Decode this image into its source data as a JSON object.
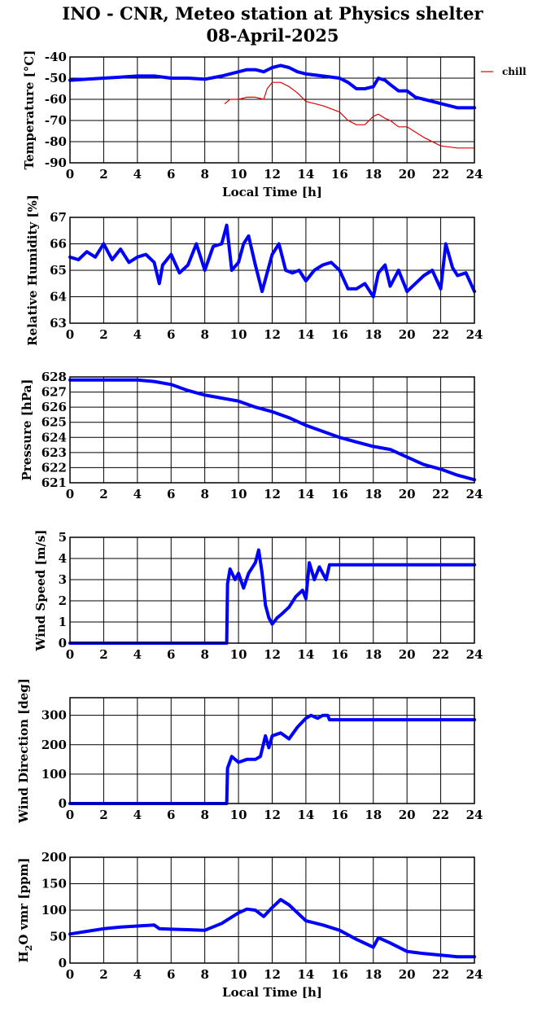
{
  "page": {
    "title_line1": "INO - CNR, Meteo station at Physics shelter",
    "title_line2": "08-April-2025"
  },
  "colors": {
    "series_blue": "#0000ff",
    "series_red": "#dd0000",
    "frame": "#000000"
  },
  "chart_data": [
    {
      "type": "line",
      "xlabel": "Local Time [h]",
      "ylabel": "Temperature [°C]",
      "xlim": [
        0,
        24
      ],
      "ylim": [
        -90,
        -40
      ],
      "xticks": [
        "0",
        "2",
        "4",
        "6",
        "8",
        "10",
        "12",
        "14",
        "16",
        "18",
        "20",
        "22",
        "24"
      ],
      "yticks": [
        "-90",
        "-80",
        "-70",
        "-60",
        "-50",
        "-40"
      ],
      "grid": true,
      "legend": "top-right, outside plot",
      "series": [
        {
          "color": "#0000ff",
          "x": [
            0,
            1,
            2,
            3,
            4,
            5,
            6,
            7,
            8,
            9,
            9.5,
            10,
            10.5,
            11,
            11.5,
            12,
            12.5,
            13,
            13.5,
            14,
            15,
            16,
            16.5,
            17,
            17.5,
            18,
            18.3,
            18.7,
            19,
            19.5,
            20,
            20.5,
            21,
            22,
            23,
            24
          ],
          "y": [
            -51,
            -50.5,
            -50,
            -49.5,
            -49,
            -49,
            -50,
            -50,
            -50.5,
            -49,
            -48,
            -47,
            -46,
            -46,
            -47,
            -45,
            -44,
            -45,
            -47,
            -48,
            -49,
            -50,
            -52,
            -55,
            -55,
            -54,
            -50,
            -51,
            -53,
            -56,
            -56,
            -59,
            -60,
            -62,
            -64,
            -64
          ]
        },
        {
          "name": "chill",
          "color": "#dd0000",
          "x": [
            9.2,
            9.5,
            10,
            10.5,
            11,
            11.5,
            11.7,
            12,
            12.5,
            13,
            13.5,
            14,
            14.5,
            15,
            16,
            16.5,
            17,
            17.5,
            18,
            18.3,
            18.7,
            19,
            19.5,
            20,
            21,
            22,
            23,
            24
          ],
          "y": [
            -62,
            -60,
            -60,
            -59,
            -59,
            -60,
            -55,
            -52,
            -52,
            -54,
            -57,
            -61,
            -62,
            -63,
            -66,
            -70,
            -72,
            -72,
            -68,
            -67,
            -69,
            -70,
            -73,
            -73,
            -78,
            -82,
            -83,
            -83
          ]
        }
      ]
    },
    {
      "type": "line",
      "xlabel": "",
      "ylabel": "Relative Humidity [%]",
      "xlim": [
        0,
        24
      ],
      "ylim": [
        63,
        67
      ],
      "xticks": [
        "0",
        "2",
        "4",
        "6",
        "8",
        "10",
        "12",
        "14",
        "16",
        "18",
        "20",
        "22",
        "24"
      ],
      "yticks": [
        "63",
        "64",
        "65",
        "66",
        "67"
      ],
      "grid": true,
      "series": [
        {
          "color": "#0000ff",
          "x": [
            0,
            0.5,
            1,
            1.5,
            2,
            2.5,
            3,
            3.5,
            4,
            4.5,
            5,
            5.3,
            5.5,
            6,
            6.5,
            7,
            7.5,
            8,
            8.5,
            9,
            9.3,
            9.6,
            10,
            10.3,
            10.6,
            11,
            11.4,
            11.7,
            12,
            12.4,
            12.8,
            13.2,
            13.6,
            14,
            14.5,
            15,
            15.5,
            16,
            16.5,
            17,
            17.5,
            18,
            18.3,
            18.7,
            19,
            19.5,
            20,
            20.5,
            21,
            21.5,
            22,
            22.3,
            22.7,
            23,
            23.5,
            24
          ],
          "y": [
            65.5,
            65.4,
            65.7,
            65.5,
            66,
            65.4,
            65.8,
            65.3,
            65.5,
            65.6,
            65.3,
            64.5,
            65.2,
            65.6,
            64.9,
            65.2,
            66,
            65,
            65.9,
            66,
            66.7,
            65,
            65.3,
            66,
            66.3,
            65.2,
            64.2,
            64.9,
            65.6,
            66,
            65,
            64.9,
            65,
            64.6,
            65,
            65.2,
            65.3,
            65,
            64.3,
            64.3,
            64.5,
            64,
            64.9,
            65.2,
            64.4,
            65,
            64.2,
            64.5,
            64.8,
            65,
            64.3,
            66,
            65.1,
            64.8,
            64.9,
            64.2
          ]
        }
      ]
    },
    {
      "type": "line",
      "xlabel": "",
      "ylabel": "Pressure [hPa]",
      "xlim": [
        0,
        24
      ],
      "ylim": [
        621,
        628
      ],
      "xticks": [
        "0",
        "2",
        "4",
        "6",
        "8",
        "10",
        "12",
        "14",
        "16",
        "18",
        "20",
        "22",
        "24"
      ],
      "yticks": [
        "621",
        "622",
        "623",
        "624",
        "625",
        "626",
        "627",
        "628"
      ],
      "grid": true,
      "series": [
        {
          "color": "#0000ff",
          "x": [
            0,
            1,
            2,
            3,
            4,
            5,
            6,
            7,
            8,
            9,
            10,
            11,
            12,
            13,
            14,
            15,
            16,
            17,
            18,
            19,
            20,
            21,
            22,
            23,
            24
          ],
          "y": [
            627.8,
            627.8,
            627.8,
            627.8,
            627.8,
            627.7,
            627.5,
            627.1,
            626.8,
            626.6,
            626.4,
            626,
            625.7,
            625.3,
            624.8,
            624.4,
            624,
            623.7,
            623.4,
            623.2,
            622.7,
            622.2,
            621.9,
            621.5,
            621.2
          ]
        }
      ]
    },
    {
      "type": "line",
      "xlabel": "",
      "ylabel": "Wind Speed [m/s]",
      "xlim": [
        0,
        24
      ],
      "ylim": [
        0,
        5
      ],
      "xticks": [
        "0",
        "2",
        "4",
        "6",
        "8",
        "10",
        "12",
        "14",
        "16",
        "18",
        "20",
        "22",
        "24"
      ],
      "yticks": [
        "0",
        "1",
        "2",
        "3",
        "4",
        "5"
      ],
      "grid": true,
      "series": [
        {
          "color": "#0000ff",
          "x": [
            0,
            9.3,
            9.35,
            9.5,
            9.8,
            10,
            10.3,
            10.6,
            11,
            11.2,
            11.4,
            11.6,
            11.8,
            12,
            12.3,
            12.6,
            13,
            13.4,
            13.8,
            14,
            14.2,
            14.5,
            14.8,
            15,
            15.2,
            15.4,
            16,
            18,
            20,
            22,
            24
          ],
          "y": [
            0,
            0,
            2.8,
            3.5,
            3,
            3.3,
            2.6,
            3.3,
            3.8,
            4.4,
            3.3,
            1.8,
            1.2,
            0.9,
            1.2,
            1.4,
            1.7,
            2.2,
            2.5,
            2.1,
            3.8,
            3,
            3.6,
            3.3,
            3,
            3.7,
            3.7,
            3.7,
            3.7,
            3.7,
            3.7
          ]
        }
      ]
    },
    {
      "type": "line",
      "xlabel": "",
      "ylabel": "Wind Direction [deg]",
      "xlim": [
        0,
        24
      ],
      "ylim": [
        0,
        360
      ],
      "xticks": [
        "0",
        "2",
        "4",
        "6",
        "8",
        "10",
        "12",
        "14",
        "16",
        "18",
        "20",
        "22",
        "24"
      ],
      "yticks": [
        "0",
        "100",
        "200",
        "300"
      ],
      "grid": true,
      "series": [
        {
          "color": "#0000ff",
          "x": [
            0,
            9.3,
            9.35,
            9.6,
            10,
            10.5,
            11,
            11.3,
            11.6,
            11.8,
            12,
            12.5,
            13,
            13.5,
            14,
            14.3,
            14.7,
            15,
            15.3,
            15.4,
            16,
            18,
            20,
            22,
            24
          ],
          "y": [
            0,
            0,
            120,
            160,
            140,
            150,
            150,
            160,
            230,
            190,
            230,
            240,
            220,
            260,
            290,
            300,
            290,
            300,
            300,
            285,
            285,
            285,
            285,
            285,
            285
          ]
        }
      ]
    },
    {
      "type": "line",
      "xlabel": "Local Time [h]",
      "ylabel": "H2 O vmr [ppm]",
      "xlim": [
        0,
        24
      ],
      "ylim": [
        0,
        200
      ],
      "xticks": [
        "0",
        "2",
        "4",
        "6",
        "8",
        "10",
        "12",
        "14",
        "16",
        "18",
        "20",
        "22",
        "24"
      ],
      "yticks": [
        "0",
        "50",
        "100",
        "150",
        "200"
      ],
      "grid": true,
      "series": [
        {
          "color": "#0000ff",
          "x": [
            0,
            1,
            2,
            3,
            4,
            5,
            5.3,
            6,
            7,
            8,
            9,
            9.5,
            10,
            10.5,
            11,
            11.5,
            12,
            12.5,
            13,
            13.5,
            14,
            15,
            16,
            17,
            18,
            18.3,
            19,
            20,
            21,
            22,
            23,
            24
          ],
          "y": [
            55,
            60,
            65,
            68,
            70,
            72,
            65,
            64,
            63,
            62,
            75,
            85,
            95,
            102,
            100,
            88,
            105,
            120,
            110,
            95,
            80,
            72,
            62,
            45,
            30,
            48,
            38,
            22,
            18,
            15,
            12,
            12
          ]
        }
      ]
    }
  ]
}
